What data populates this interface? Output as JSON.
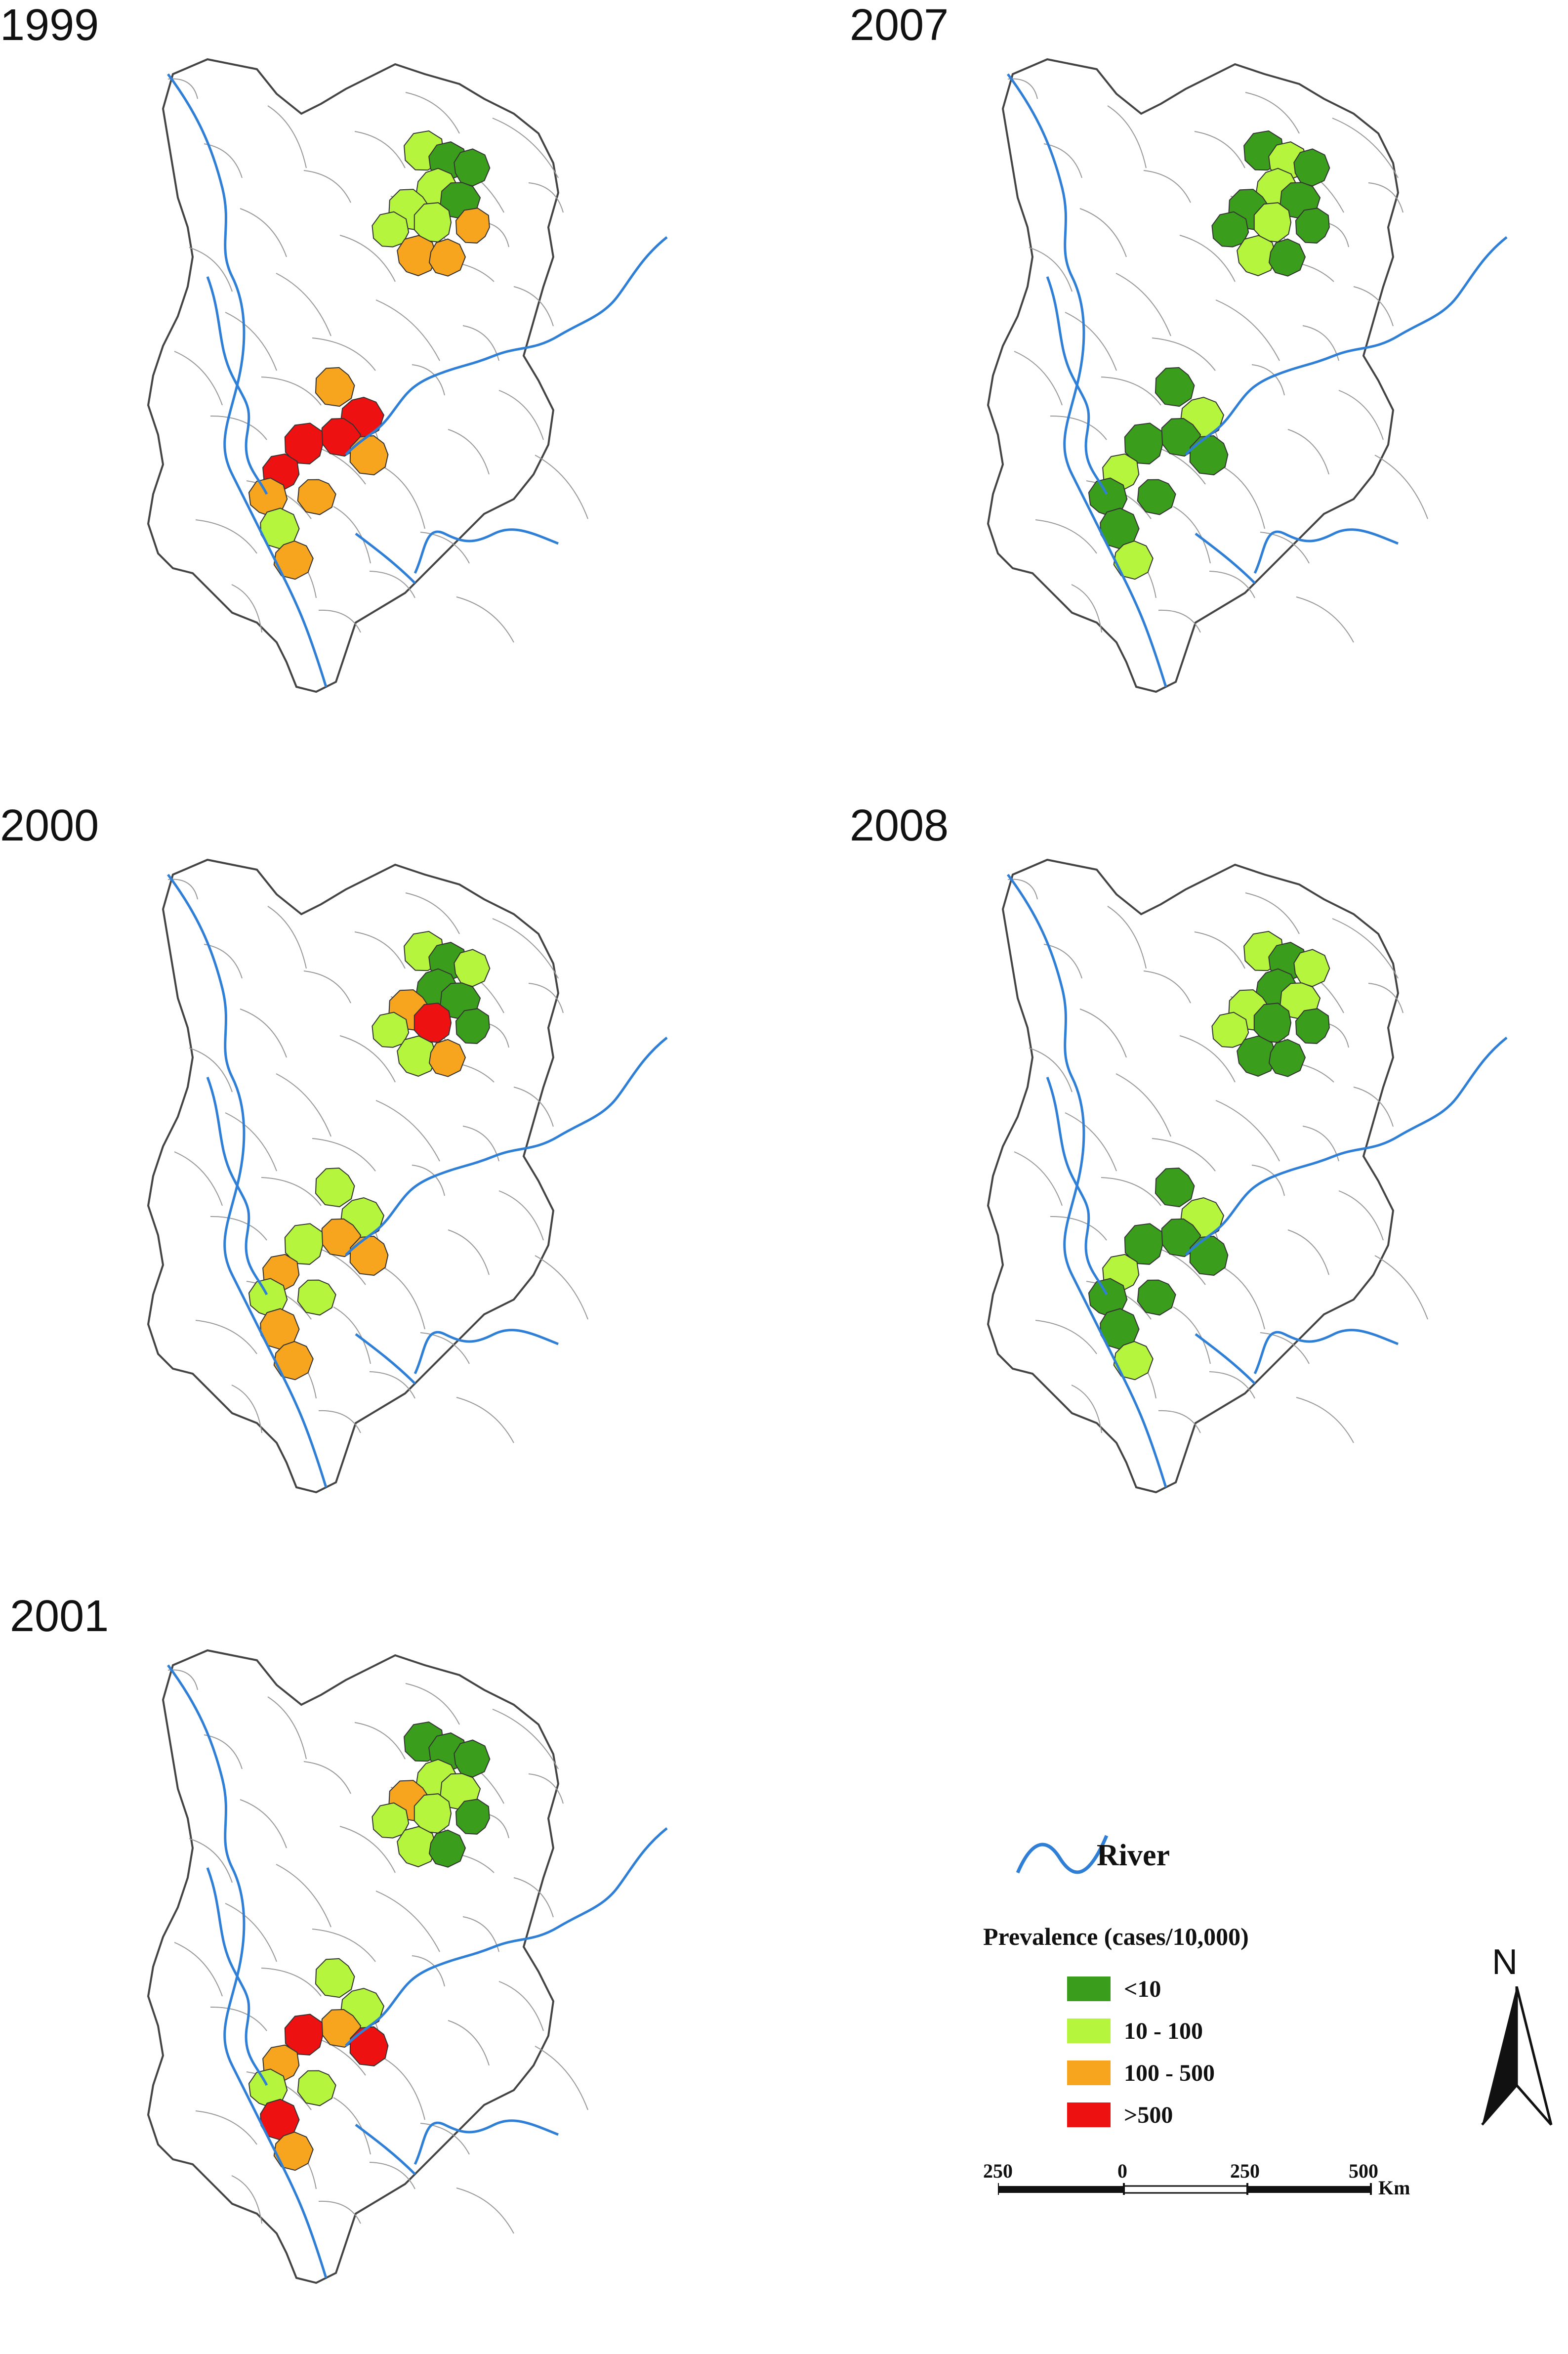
{
  "panels": [
    {
      "year": "1999",
      "classes": [
        "b",
        "a",
        "a",
        "b",
        "a",
        "b",
        "b",
        "c",
        "b",
        "c",
        "c",
        "d",
        "d",
        "c",
        "d",
        "d",
        "c",
        "b",
        "c",
        "c",
        "c"
      ]
    },
    {
      "year": "2007",
      "classes": [
        "a",
        "b",
        "a",
        "b",
        "a",
        "a",
        "b",
        "a",
        "a",
        "b",
        "a",
        "b",
        "a",
        "a",
        "a",
        "b",
        "a",
        "a",
        "b",
        "a",
        "a"
      ]
    },
    {
      "year": "2000",
      "classes": [
        "b",
        "a",
        "b",
        "a",
        "a",
        "c",
        "d",
        "a",
        "b",
        "b",
        "c",
        "b",
        "c",
        "c",
        "b",
        "c",
        "b",
        "c",
        "c",
        "b",
        "b"
      ]
    },
    {
      "year": "2008",
      "classes": [
        "b",
        "a",
        "b",
        "a",
        "b",
        "b",
        "a",
        "a",
        "b",
        "a",
        "a",
        "b",
        "a",
        "a",
        "a",
        "b",
        "a",
        "a",
        "b",
        "a",
        "a"
      ]
    },
    {
      "year": "2001",
      "classes": [
        "a",
        "a",
        "a",
        "b",
        "b",
        "c",
        "b",
        "a",
        "b",
        "b",
        "a",
        "b",
        "c",
        "d",
        "d",
        "c",
        "b",
        "d",
        "c",
        "b",
        "b"
      ]
    }
  ],
  "legend": {
    "river_label": "River",
    "title": "Prevalence (cases/10,000)",
    "items": [
      {
        "label": "<10",
        "color": "#3a9e1c"
      },
      {
        "label": "10 - 100",
        "color": "#b6f53d"
      },
      {
        "label": "100 - 500",
        "color": "#f7a51f"
      },
      {
        "label": ">500",
        "color": "#ee1111"
      }
    ],
    "river_color": "#2f7fd6"
  },
  "scale": {
    "ticks": [
      "250",
      "0",
      "250",
      "500"
    ],
    "unit": "Km"
  },
  "north": {
    "label": "N"
  }
}
